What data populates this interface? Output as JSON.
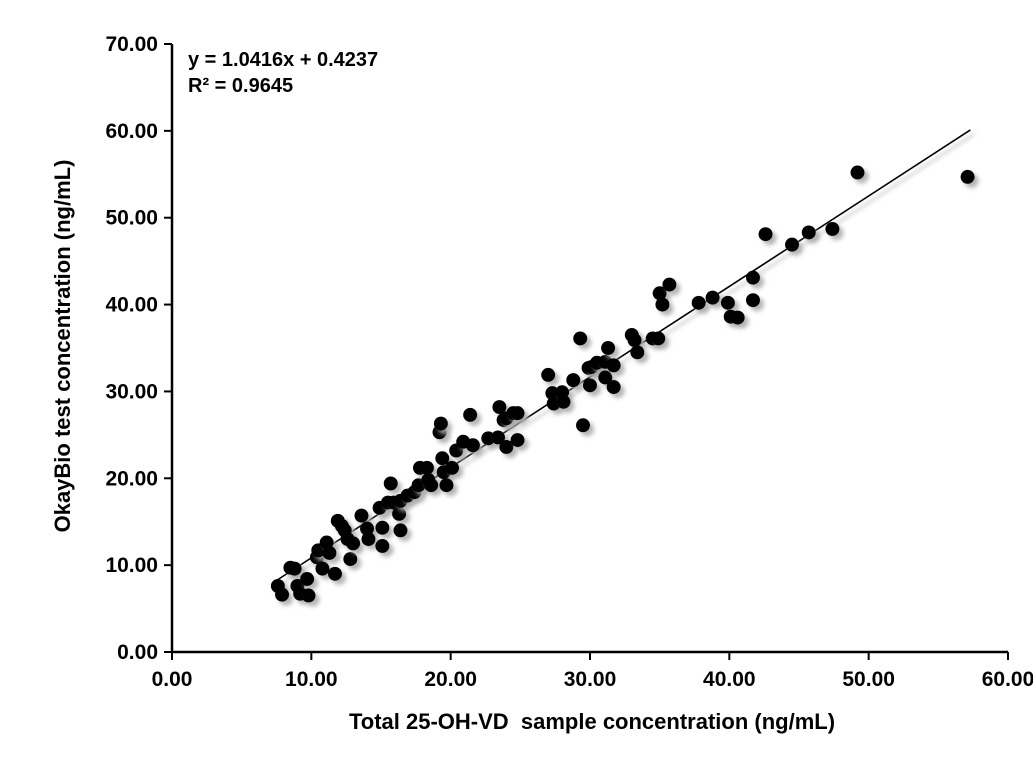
{
  "chart_data": {
    "type": "scatter",
    "title": "",
    "xlabel": "Total 25-OH-VD  sample concentration (ng/mL)",
    "ylabel": "OkayBio test concentration (ng/mL)",
    "xlim": [
      0,
      60
    ],
    "ylim": [
      0,
      70
    ],
    "grid": false,
    "legend": false,
    "x_ticks": [
      0,
      10,
      20,
      30,
      40,
      50,
      60
    ],
    "x_tick_labels": [
      "0.00",
      "10.00",
      "20.00",
      "30.00",
      "40.00",
      "50.00",
      "60.00"
    ],
    "y_ticks": [
      0,
      10,
      20,
      30,
      40,
      50,
      60,
      70
    ],
    "y_tick_labels": [
      "0.00",
      "10.00",
      "20.00",
      "30.00",
      "40.00",
      "50.00",
      "60.00",
      "70.00"
    ],
    "annotations": {
      "equation": "y = 1.0416x + 0.4237",
      "r_squared": "R² = 0.9645"
    },
    "trendline": {
      "slope": 1.0416,
      "intercept": 0.4237,
      "x_start": 7.4,
      "x_end": 57.3
    },
    "marker_color": "#000000",
    "line_color": "#000000",
    "axis_color": "#000000",
    "points": [
      [
        7.6,
        7.6
      ],
      [
        7.9,
        6.6
      ],
      [
        8.5,
        9.7
      ],
      [
        8.8,
        9.6
      ],
      [
        9.0,
        7.6
      ],
      [
        9.2,
        6.7
      ],
      [
        9.7,
        8.4
      ],
      [
        9.8,
        6.5
      ],
      [
        10.4,
        10.9
      ],
      [
        10.5,
        11.7
      ],
      [
        10.8,
        9.6
      ],
      [
        11.1,
        12.6
      ],
      [
        11.3,
        11.4
      ],
      [
        11.7,
        9.0
      ],
      [
        11.9,
        15.1
      ],
      [
        12.2,
        14.5
      ],
      [
        12.4,
        14.0
      ],
      [
        12.6,
        13.0
      ],
      [
        12.8,
        10.7
      ],
      [
        13.0,
        12.5
      ],
      [
        13.6,
        15.7
      ],
      [
        14.0,
        14.2
      ],
      [
        14.1,
        13.0
      ],
      [
        14.9,
        16.6
      ],
      [
        15.1,
        14.3
      ],
      [
        15.1,
        12.2
      ],
      [
        15.5,
        17.2
      ],
      [
        15.7,
        19.4
      ],
      [
        15.9,
        17.2
      ],
      [
        16.3,
        15.9
      ],
      [
        16.4,
        14.0
      ],
      [
        16.4,
        17.4
      ],
      [
        16.9,
        18.0
      ],
      [
        17.4,
        18.4
      ],
      [
        17.7,
        19.2
      ],
      [
        17.8,
        21.2
      ],
      [
        18.3,
        21.2
      ],
      [
        18.4,
        19.8
      ],
      [
        18.6,
        19.2
      ],
      [
        19.2,
        25.3
      ],
      [
        19.3,
        26.3
      ],
      [
        19.4,
        22.3
      ],
      [
        19.5,
        20.7
      ],
      [
        19.7,
        19.2
      ],
      [
        20.1,
        21.2
      ],
      [
        20.4,
        23.2
      ],
      [
        20.9,
        24.2
      ],
      [
        21.4,
        27.3
      ],
      [
        21.6,
        23.8
      ],
      [
        22.7,
        24.6
      ],
      [
        23.4,
        24.7
      ],
      [
        24.0,
        23.6
      ],
      [
        24.8,
        24.4
      ],
      [
        23.5,
        28.2
      ],
      [
        23.8,
        26.7
      ],
      [
        24.0,
        26.9
      ],
      [
        24.5,
        27.5
      ],
      [
        24.8,
        27.5
      ],
      [
        27.0,
        31.9
      ],
      [
        27.3,
        29.8
      ],
      [
        27.4,
        28.6
      ],
      [
        28.0,
        29.9
      ],
      [
        28.1,
        28.8
      ],
      [
        28.8,
        31.3
      ],
      [
        29.3,
        36.1
      ],
      [
        29.5,
        26.1
      ],
      [
        29.9,
        32.7
      ],
      [
        30.0,
        30.7
      ],
      [
        30.1,
        32.8
      ],
      [
        30.5,
        33.3
      ],
      [
        31.1,
        33.4
      ],
      [
        31.1,
        31.6
      ],
      [
        31.3,
        35.0
      ],
      [
        31.7,
        33.0
      ],
      [
        31.7,
        30.5
      ],
      [
        33.0,
        36.5
      ],
      [
        33.2,
        35.9
      ],
      [
        33.4,
        34.5
      ],
      [
        34.5,
        36.1
      ],
      [
        34.9,
        36.1
      ],
      [
        35.0,
        41.3
      ],
      [
        35.2,
        40.0
      ],
      [
        35.7,
        42.3
      ],
      [
        37.8,
        40.2
      ],
      [
        38.8,
        40.8
      ],
      [
        39.9,
        40.2
      ],
      [
        40.1,
        38.6
      ],
      [
        40.6,
        38.5
      ],
      [
        41.7,
        43.1
      ],
      [
        41.7,
        40.5
      ],
      [
        42.6,
        48.1
      ],
      [
        44.5,
        46.9
      ],
      [
        45.7,
        48.3
      ],
      [
        47.4,
        48.7
      ],
      [
        49.2,
        55.2
      ],
      [
        57.1,
        54.7
      ]
    ]
  }
}
